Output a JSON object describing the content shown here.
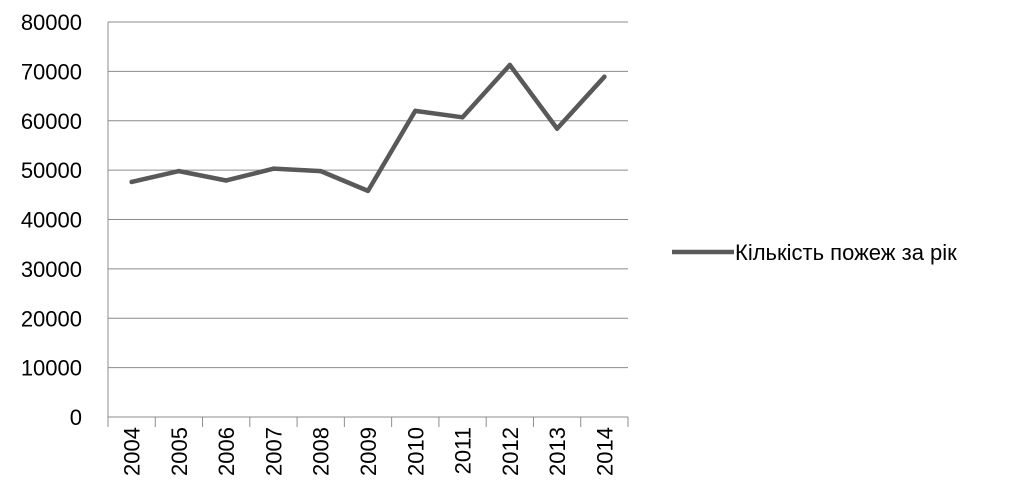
{
  "chart_data": {
    "type": "line",
    "x": [
      "2004",
      "2005",
      "2006",
      "2007",
      "2008",
      "2009",
      "2010",
      "2011",
      "2012",
      "2013",
      "2014"
    ],
    "series": [
      {
        "name": "Кількість пожеж за рік",
        "values": [
          47600,
          49800,
          47900,
          50300,
          49800,
          45800,
          62000,
          60700,
          71300,
          58400,
          68900
        ],
        "color": "#595959"
      }
    ],
    "ylim": [
      0,
      80000
    ],
    "yticks": [
      "0",
      "10000",
      "20000",
      "30000",
      "40000",
      "50000",
      "60000",
      "70000",
      "80000"
    ],
    "grid": true,
    "legend": "right",
    "title": "",
    "xlabel": "",
    "ylabel": ""
  }
}
